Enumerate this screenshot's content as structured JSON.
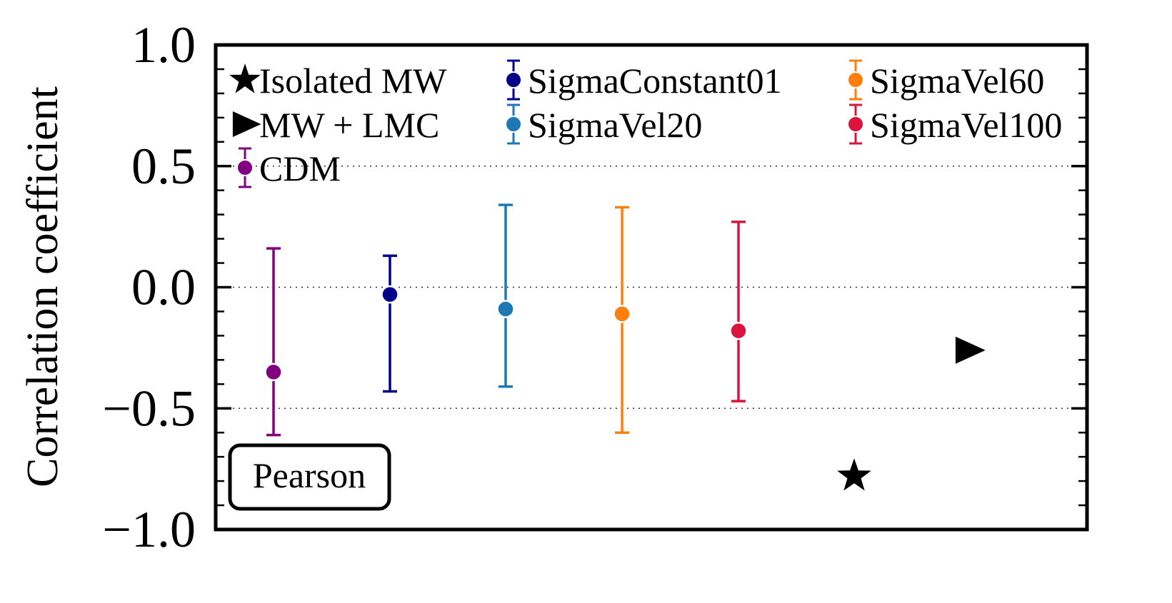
{
  "chart_data": {
    "type": "scatter",
    "ylabel": "Correlation coefficient",
    "xlabel": "",
    "ylim": [
      -1.0,
      1.0
    ],
    "yticks": [
      1.0,
      0.5,
      0.0,
      -0.5,
      -1.0
    ],
    "ytick_labels": [
      "1.0",
      "0.5",
      "0.0",
      "−0.5",
      "−1.0"
    ],
    "grid": "dotted horizontal lines at 0.5, 0.0, -0.5",
    "legend_placement": "top",
    "annotation": "Pearson",
    "series": [
      {
        "name": "CDM",
        "marker": "circle",
        "color": "#800080",
        "y": -0.35,
        "err_low": -0.61,
        "err_high": 0.16
      },
      {
        "name": "SigmaConstant01",
        "marker": "circle",
        "color": "#00008b",
        "y": -0.03,
        "err_low": -0.43,
        "err_high": 0.13
      },
      {
        "name": "SigmaVel20",
        "marker": "circle",
        "color": "#1f77b4",
        "y": -0.09,
        "err_low": -0.41,
        "err_high": 0.34
      },
      {
        "name": "SigmaVel60",
        "marker": "circle",
        "color": "#ff7f0e",
        "y": -0.11,
        "err_low": -0.6,
        "err_high": 0.33
      },
      {
        "name": "SigmaVel100",
        "marker": "circle",
        "color": "#dc143c",
        "y": -0.18,
        "err_low": -0.47,
        "err_high": 0.27
      },
      {
        "name": "Isolated MW",
        "marker": "star",
        "color": "#000000",
        "y": -0.78
      },
      {
        "name": "MW + LMC",
        "marker": "triangle-right",
        "color": "#000000",
        "y": -0.26
      }
    ],
    "legend_order": [
      "Isolated MW",
      "SigmaConstant01",
      "SigmaVel60",
      "MW + LMC",
      "SigmaVel20",
      "SigmaVel100",
      "CDM"
    ]
  }
}
